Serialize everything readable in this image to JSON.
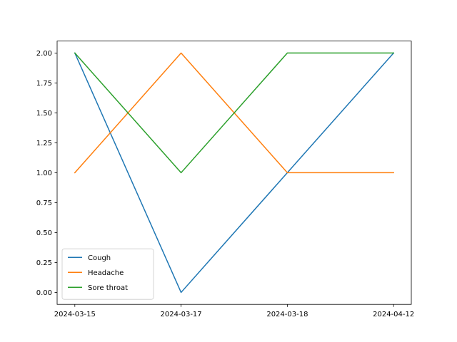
{
  "chart_data": {
    "type": "line",
    "title": "",
    "xlabel": "",
    "ylabel": "",
    "x": [
      "2024-03-15",
      "2024-03-17",
      "2024-03-18",
      "2024-04-12"
    ],
    "ylim": [
      -0.1,
      2.1
    ],
    "yticks": [
      "0.00",
      "0.25",
      "0.50",
      "0.75",
      "1.00",
      "1.25",
      "1.50",
      "1.75",
      "2.00"
    ],
    "grid": false,
    "legend_position": "lower-left",
    "series": [
      {
        "name": "Cough",
        "color": "#1f77b4",
        "values": [
          2,
          0,
          1,
          2
        ]
      },
      {
        "name": "Headache",
        "color": "#ff7f0e",
        "values": [
          1,
          2,
          1,
          1
        ]
      },
      {
        "name": "Sore throat",
        "color": "#2ca02c",
        "values": [
          2,
          1,
          2,
          2
        ]
      }
    ]
  }
}
